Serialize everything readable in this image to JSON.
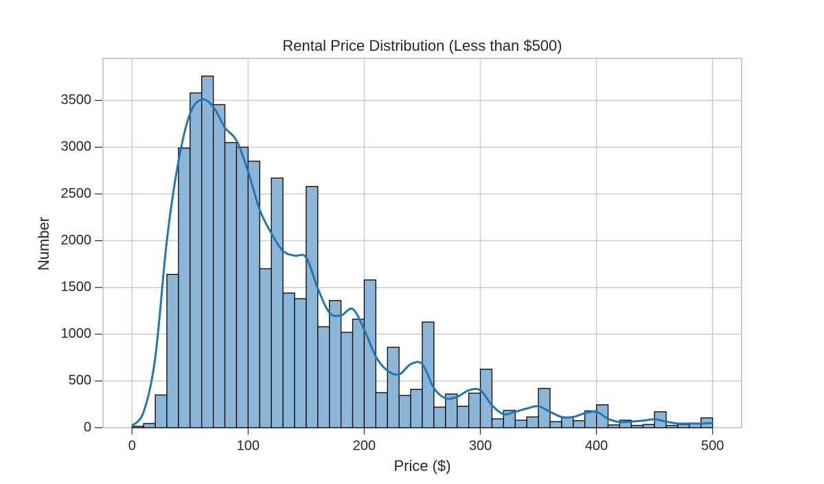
{
  "chart_data": {
    "type": "histogram",
    "title": "Rental Price Distribution (Less than $500)",
    "xlabel": "Price ($)",
    "ylabel": "Number",
    "bins": [
      0,
      10,
      20,
      30,
      40,
      50,
      60,
      70,
      80,
      90,
      100,
      110,
      120,
      130,
      140,
      150,
      160,
      170,
      180,
      190,
      200,
      210,
      220,
      230,
      240,
      250,
      260,
      270,
      280,
      290,
      300,
      310,
      320,
      330,
      340,
      350,
      360,
      370,
      380,
      390,
      400,
      410,
      420,
      430,
      440,
      450,
      460,
      470,
      480,
      490,
      500
    ],
    "counts": [
      15,
      45,
      350,
      1640,
      2990,
      3580,
      3760,
      3455,
      3050,
      3000,
      2850,
      1700,
      2670,
      1440,
      1380,
      2580,
      1080,
      1360,
      1020,
      1160,
      1580,
      375,
      860,
      345,
      410,
      1130,
      220,
      360,
      230,
      370,
      625,
      95,
      185,
      80,
      115,
      420,
      65,
      110,
      75,
      180,
      245,
      30,
      80,
      25,
      35,
      170,
      25,
      35,
      45,
      105
    ],
    "color": "#8cb6d8",
    "edgecolor": "#000000",
    "kde": {
      "color": "#1f77b4",
      "x": [
        0,
        10,
        20,
        30,
        40,
        50,
        60,
        70,
        80,
        90,
        100,
        110,
        120,
        130,
        140,
        150,
        160,
        170,
        180,
        190,
        200,
        210,
        220,
        230,
        240,
        250,
        260,
        270,
        280,
        290,
        300,
        310,
        320,
        330,
        340,
        350,
        360,
        370,
        380,
        390,
        400,
        410,
        420,
        430,
        440,
        450,
        460,
        470,
        480,
        490,
        500
      ],
      "values": [
        20,
        170,
        750,
        2000,
        2850,
        3360,
        3510,
        3430,
        3210,
        3070,
        2740,
        2330,
        2080,
        1890,
        1840,
        1820,
        1490,
        1230,
        1200,
        1270,
        1050,
        760,
        610,
        570,
        680,
        680,
        425,
        315,
        330,
        400,
        400,
        240,
        145,
        170,
        205,
        230,
        170,
        115,
        115,
        155,
        170,
        95,
        60,
        65,
        75,
        90,
        65,
        45,
        45,
        45,
        50
      ]
    },
    "xlim": [
      -25,
      525
    ],
    "ylim": [
      0,
      3950
    ],
    "xticks": [
      0,
      100,
      200,
      300,
      400,
      500
    ],
    "yticks": [
      0,
      500,
      1000,
      1500,
      2000,
      2500,
      3000,
      3500
    ],
    "grid": true
  }
}
